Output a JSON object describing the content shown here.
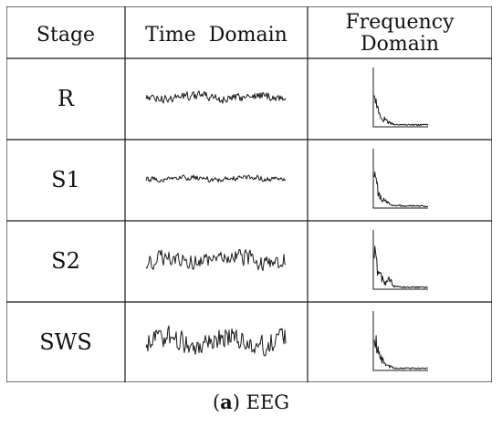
{
  "table": {
    "headers": {
      "stage": "Stage",
      "time": "Time  Domain",
      "freq_line1": "Frequency",
      "freq_line2": "Domain"
    },
    "rows": [
      {
        "stage": "R",
        "time_icon": "eeg-time-waveform-icon",
        "freq_icon": "eeg-spectrum-icon",
        "amplitude": "low"
      },
      {
        "stage": "S1",
        "time_icon": "eeg-time-waveform-icon",
        "freq_icon": "eeg-spectrum-icon",
        "amplitude": "very-low"
      },
      {
        "stage": "S2",
        "time_icon": "eeg-time-waveform-icon",
        "freq_icon": "eeg-spectrum-icon",
        "amplitude": "medium"
      },
      {
        "stage": "SWS",
        "time_icon": "eeg-time-waveform-icon",
        "freq_icon": "eeg-spectrum-icon",
        "amplitude": "high"
      }
    ]
  },
  "caption": {
    "label": "a",
    "text": "EEG"
  },
  "colors": {
    "line": "#1a1a1a",
    "background": "#ffffff"
  }
}
